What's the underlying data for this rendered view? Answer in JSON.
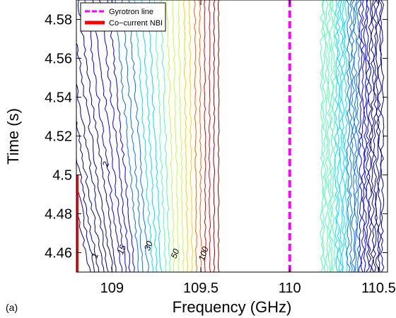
{
  "panel_label": "(a)",
  "chart_data": {
    "type": "contour",
    "title": "",
    "xlabel": "Frequency (GHz)",
    "ylabel": "Time (s)",
    "xlim": [
      108.8,
      110.55
    ],
    "ylim": [
      4.45,
      4.59
    ],
    "xticks": [
      109,
      109.5,
      110,
      110.5
    ],
    "xtick_labels": [
      "109",
      "109.5",
      "110",
      "110.5"
    ],
    "yticks": [
      4.46,
      4.48,
      4.5,
      4.52,
      4.54,
      4.56,
      4.58
    ],
    "ytick_labels": [
      "4.46",
      "4.48",
      "4.5",
      "4.52",
      "4.54",
      "4.56",
      "4.58"
    ],
    "grid": false,
    "legend_position": "top-left",
    "contour_labels": [
      {
        "text": "1",
        "x": 108.92,
        "y": 4.458
      },
      {
        "text": "2",
        "x": 108.98,
        "y": 4.505
      },
      {
        "text": "15",
        "x": 109.07,
        "y": 4.461
      },
      {
        "text": "30",
        "x": 109.22,
        "y": 4.463
      },
      {
        "text": "50",
        "x": 109.37,
        "y": 4.459
      },
      {
        "text": "100",
        "x": 109.53,
        "y": 4.459
      }
    ],
    "series": [
      {
        "name": "Gyrotron line",
        "color": "#ff00ff",
        "style": "dashed",
        "x": [
          110,
          110
        ],
        "y": [
          4.45,
          4.59
        ]
      },
      {
        "name": "Co−current NBI",
        "color": "#ff0000",
        "style": "solid",
        "x": [
          108.8,
          108.8
        ],
        "y": [
          4.45,
          4.5
        ]
      }
    ],
    "contour_colors": [
      "#00008f",
      "#0000ff",
      "#006fff",
      "#00dfff",
      "#4fffaf",
      "#bfff3f",
      "#ffcf00",
      "#ff5f00",
      "#df0000",
      "#8f0000"
    ]
  }
}
